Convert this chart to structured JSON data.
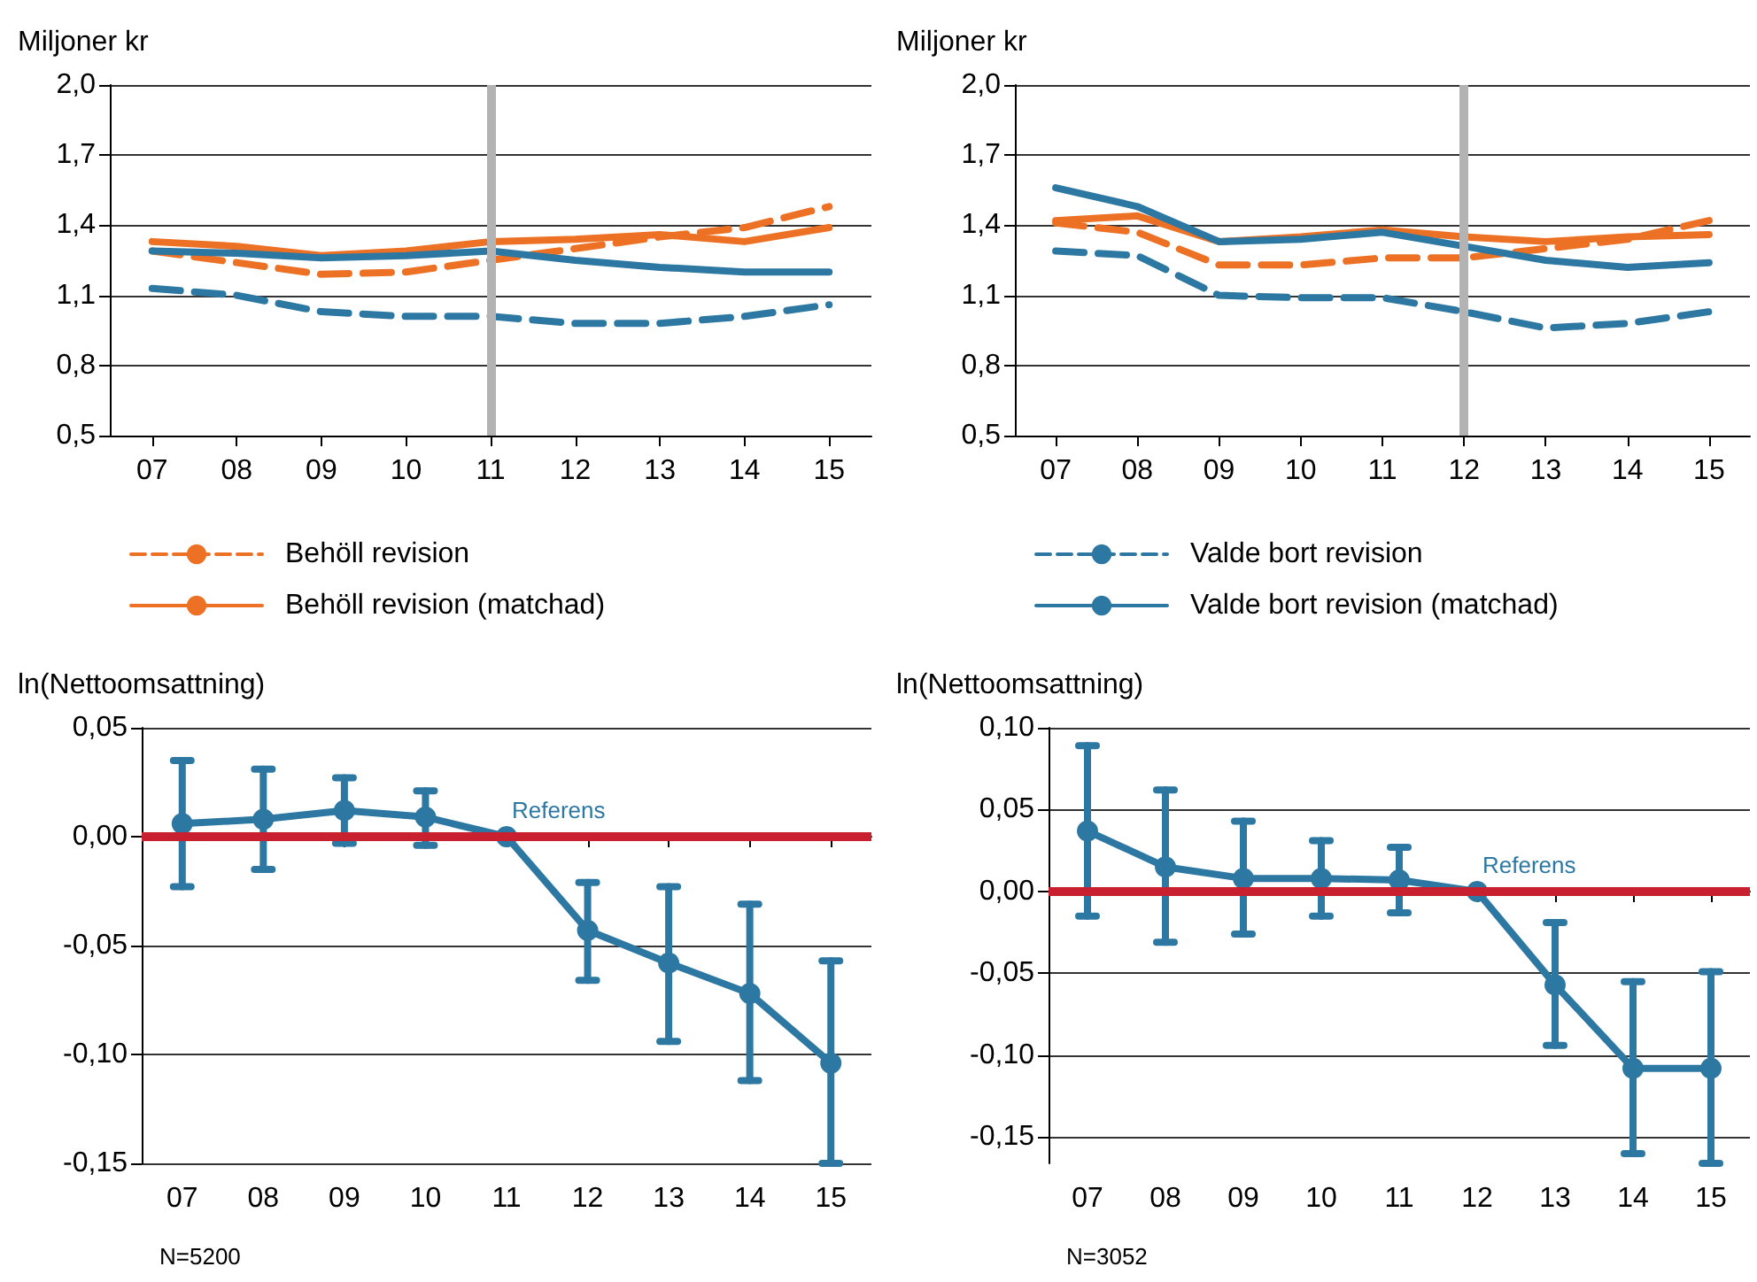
{
  "chart_data": [
    {
      "type": "line",
      "ylabel": "Miljoner kr",
      "categories": [
        "07",
        "08",
        "09",
        "10",
        "11",
        "12",
        "13",
        "14",
        "15"
      ],
      "ylim": [
        0.5,
        2.0
      ],
      "yticks": [
        {
          "value": 0.5,
          "label": "0,5"
        },
        {
          "value": 0.8,
          "label": "0,8"
        },
        {
          "value": 1.1,
          "label": "1,1"
        },
        {
          "value": 1.4,
          "label": "1,4"
        },
        {
          "value": 1.7,
          "label": "1,7"
        },
        {
          "value": 2.0,
          "label": "2,0"
        }
      ],
      "grid": "y",
      "legend": "bottom",
      "marker": "none",
      "ref_lines": [
        {
          "axis": "x",
          "value": "11",
          "color": "#b3b3b3"
        }
      ],
      "series": [
        {
          "name": "Behöll revision",
          "color": "#ec7125",
          "line_style": "dashed",
          "values": [
            1.29,
            1.24,
            1.19,
            1.2,
            1.25,
            1.3,
            1.35,
            1.39,
            1.48
          ]
        },
        {
          "name": "Behöll revision (matchad)",
          "color": "#ec7125",
          "line_style": "solid",
          "values": [
            1.33,
            1.31,
            1.27,
            1.29,
            1.33,
            1.34,
            1.36,
            1.33,
            1.39
          ]
        },
        {
          "color": "#2d78a2",
          "line_style": "dashed",
          "values": [
            1.13,
            1.1,
            1.03,
            1.01,
            1.01,
            0.98,
            0.98,
            1.01,
            1.06
          ]
        },
        {
          "color": "#2d78a2",
          "line_style": "solid",
          "values": [
            1.29,
            1.28,
            1.26,
            1.27,
            1.29,
            1.25,
            1.22,
            1.2,
            1.2
          ]
        }
      ]
    },
    {
      "type": "line",
      "ylabel": "Miljoner kr",
      "categories": [
        "07",
        "08",
        "09",
        "10",
        "11",
        "12",
        "13",
        "14",
        "15"
      ],
      "ylim": [
        0.5,
        2.0
      ],
      "yticks": [
        {
          "value": 0.5,
          "label": "0,5"
        },
        {
          "value": 0.8,
          "label": "0,8"
        },
        {
          "value": 1.1,
          "label": "1,1"
        },
        {
          "value": 1.4,
          "label": "1,4"
        },
        {
          "value": 1.7,
          "label": "1,7"
        },
        {
          "value": 2.0,
          "label": "2,0"
        }
      ],
      "grid": "y",
      "legend": "bottom",
      "marker": "none",
      "ref_lines": [
        {
          "axis": "x",
          "value": "12",
          "color": "#b3b3b3"
        }
      ],
      "series": [
        {
          "color": "#ec7125",
          "line_style": "dashed",
          "values": [
            1.41,
            1.37,
            1.23,
            1.23,
            1.26,
            1.26,
            1.3,
            1.34,
            1.42
          ]
        },
        {
          "color": "#ec7125",
          "line_style": "solid",
          "values": [
            1.42,
            1.44,
            1.33,
            1.35,
            1.38,
            1.35,
            1.33,
            1.35,
            1.36
          ]
        },
        {
          "name": "Valde bort revision",
          "color": "#2d78a2",
          "line_style": "dashed",
          "values": [
            1.29,
            1.27,
            1.1,
            1.09,
            1.09,
            1.03,
            0.96,
            0.98,
            1.03
          ]
        },
        {
          "name": "Valde bort revision (matchad)",
          "color": "#2d78a2",
          "line_style": "solid",
          "values": [
            1.56,
            1.48,
            1.33,
            1.34,
            1.37,
            1.31,
            1.25,
            1.22,
            1.24
          ]
        }
      ]
    },
    {
      "type": "line",
      "ylabel": "ln(Nettoomsattning)",
      "categories": [
        "07",
        "08",
        "09",
        "10",
        "11",
        "12",
        "13",
        "14",
        "15"
      ],
      "ylim": [
        -0.15,
        0.05
      ],
      "yticks": [
        {
          "value": -0.15,
          "label": "-0,15"
        },
        {
          "value": -0.1,
          "label": "-0,10"
        },
        {
          "value": -0.05,
          "label": "-0,05"
        },
        {
          "value": 0,
          "label": "0,00"
        },
        {
          "value": 0.05,
          "label": "0,05"
        }
      ],
      "grid": "y",
      "marker": "circle",
      "ref_lines": [
        {
          "axis": "y",
          "value": 0,
          "color": "#c8202f"
        }
      ],
      "annotations": [
        {
          "text": "Referens",
          "x": "11",
          "y": 0
        },
        "N=5200"
      ],
      "series": [
        {
          "color": "#2d78a2",
          "line_style": "solid",
          "values": [
            0.006,
            0.008,
            0.012,
            0.009,
            0,
            -0.043,
            -0.058,
            -0.072,
            -0.104
          ],
          "errors": [
            [
              -0.023,
              0.035
            ],
            [
              -0.015,
              0.031
            ],
            [
              -0.003,
              0.027
            ],
            [
              -0.004,
              0.021
            ],
            null,
            [
              -0.066,
              -0.021
            ],
            [
              -0.094,
              -0.023
            ],
            [
              -0.112,
              -0.031
            ],
            [
              -0.15,
              -0.057
            ]
          ]
        }
      ]
    },
    {
      "type": "line",
      "ylabel": "ln(Nettoomsattning)",
      "categories": [
        "07",
        "08",
        "09",
        "10",
        "11",
        "12",
        "13",
        "14",
        "15"
      ],
      "ylim": [
        -0.166,
        0.1
      ],
      "yticks": [
        {
          "value": -0.15,
          "label": "-0,15"
        },
        {
          "value": -0.1,
          "label": "-0,10"
        },
        {
          "value": -0.05,
          "label": "-0,05"
        },
        {
          "value": 0,
          "label": "0,00"
        },
        {
          "value": 0.05,
          "label": "0,05"
        },
        {
          "value": 0.1,
          "label": "0,10"
        }
      ],
      "grid": "y",
      "marker": "circle",
      "ref_lines": [
        {
          "axis": "y",
          "value": 0,
          "color": "#c8202f"
        }
      ],
      "annotations": [
        {
          "text": "Referens",
          "x": "12",
          "y": 0
        },
        "N=3052"
      ],
      "series": [
        {
          "color": "#2d78a2",
          "line_style": "solid",
          "values": [
            0.037,
            0.015,
            0.008,
            0.008,
            0.007,
            0,
            -0.057,
            -0.108,
            -0.108
          ],
          "errors": [
            [
              -0.015,
              0.089
            ],
            [
              -0.031,
              0.062
            ],
            [
              -0.026,
              0.043
            ],
            [
              -0.015,
              0.031
            ],
            [
              -0.013,
              0.027
            ],
            null,
            [
              -0.094,
              -0.019
            ],
            [
              -0.16,
              -0.055
            ],
            [
              -0.166,
              -0.049
            ]
          ]
        }
      ]
    }
  ]
}
